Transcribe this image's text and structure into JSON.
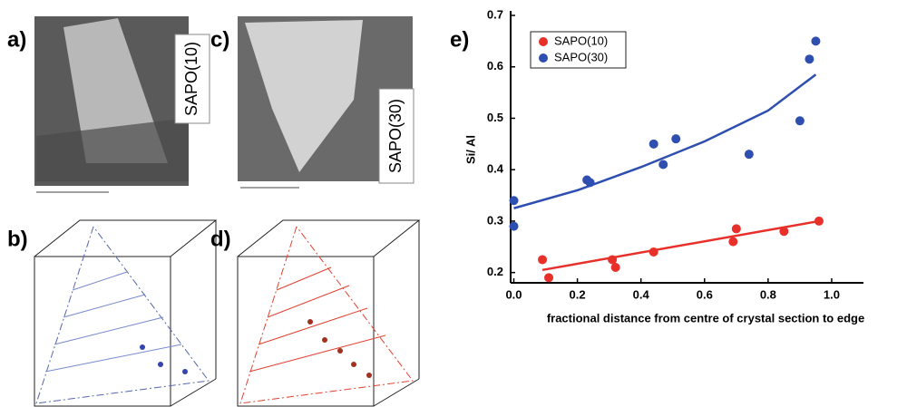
{
  "panels": [
    {
      "label": "a)",
      "caption": "SAPO(10)"
    },
    {
      "label": "b)"
    },
    {
      "label": "c)",
      "caption": "SAPO(30)"
    },
    {
      "label": "d)"
    }
  ],
  "chart_data": {
    "type": "scatter",
    "panel_label": "e)",
    "x_label": "fractional distance from centre of crystal section to edge",
    "y_label": "Si/ Al",
    "xlim": [
      -0.01,
      1.1
    ],
    "ylim": [
      0.18,
      0.7
    ],
    "xticks": [
      {
        "value": 0,
        "label": "0.0"
      },
      0.2,
      0.4,
      0.6,
      0.8,
      {
        "value": 1,
        "label": "1.0"
      }
    ],
    "yticks": [
      0.2,
      0.3,
      0.4,
      0.5,
      0.6,
      0.7
    ],
    "legend": "upper-left",
    "series": [
      {
        "name": "SAPO(10)",
        "color": "#e8302a",
        "x": [
          0.09,
          0.11,
          0.31,
          0.32,
          0.44,
          0.69,
          0.7,
          0.85,
          0.96
        ],
        "values": [
          0.225,
          0.19,
          0.225,
          0.21,
          0.24,
          0.26,
          0.285,
          0.28,
          0.3
        ],
        "fit": {
          "x": [
            0.09,
            0.96
          ],
          "values": [
            0.205,
            0.3
          ]
        }
      },
      {
        "name": "SAPO(30)",
        "color": "#2f4fb0",
        "x": [
          0,
          0,
          0.23,
          0.24,
          0.44,
          0.47,
          0.51,
          0.74,
          0.9,
          0.93,
          0.95
        ],
        "values": [
          0.34,
          0.29,
          0.38,
          0.375,
          0.45,
          0.41,
          0.46,
          0.43,
          0.495,
          0.615,
          0.65
        ],
        "fit": {
          "x": [
            0,
            0.2,
            0.4,
            0.6,
            0.8,
            0.95
          ],
          "values": [
            0.325,
            0.36,
            0.405,
            0.455,
            0.515,
            0.585
          ]
        }
      }
    ]
  }
}
